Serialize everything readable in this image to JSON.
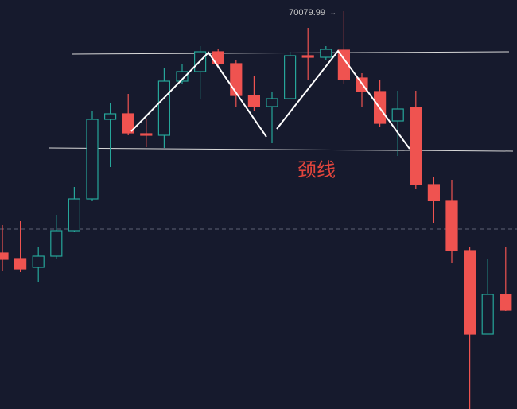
{
  "chart_data": {
    "type": "candlestick",
    "open": [
      66432,
      66348,
      66216,
      66384,
      66768,
      67248,
      68448,
      68532,
      68232,
      68208,
      69024,
      69168,
      69468,
      69288,
      68808,
      68640,
      68760,
      69408,
      69384,
      69492,
      69072,
      68868,
      68424,
      68628,
      67464,
      67224,
      66468,
      65208,
      65808
    ],
    "high": [
      66852,
      66912,
      66528,
      67008,
      67428,
      68568,
      68688,
      68832,
      68448,
      69228,
      69288,
      69552,
      69504,
      69348,
      69108,
      68868,
      69468,
      69828,
      69552,
      70079.99,
      69144,
      69048,
      68880,
      68880,
      67584,
      67536,
      66528,
      66336,
      66516
    ],
    "low": [
      66168,
      66144,
      65988,
      66348,
      66744,
      67224,
      67728,
      68208,
      68028,
      68016,
      68988,
      68748,
      69228,
      68628,
      68568,
      68088,
      68748,
      69048,
      69348,
      68988,
      68628,
      68328,
      67896,
      67392,
      66888,
      66276,
      64080,
      65208,
      65556
    ],
    "close": [
      66336,
      66192,
      66384,
      66768,
      67248,
      68448,
      68532,
      68244,
      68208,
      69024,
      69168,
      69468,
      69288,
      68808,
      68640,
      68760,
      69408,
      69384,
      69504,
      69048,
      68868,
      68388,
      68604,
      67464,
      67224,
      66468,
      65208,
      65808,
      65568
    ],
    "up_color": "#26a69a",
    "down_color": "#ef5350",
    "ylim": [
      64080,
      70248
    ],
    "price_line": 66792,
    "annotations": [
      {
        "text": "颈线"
      }
    ]
  }
}
